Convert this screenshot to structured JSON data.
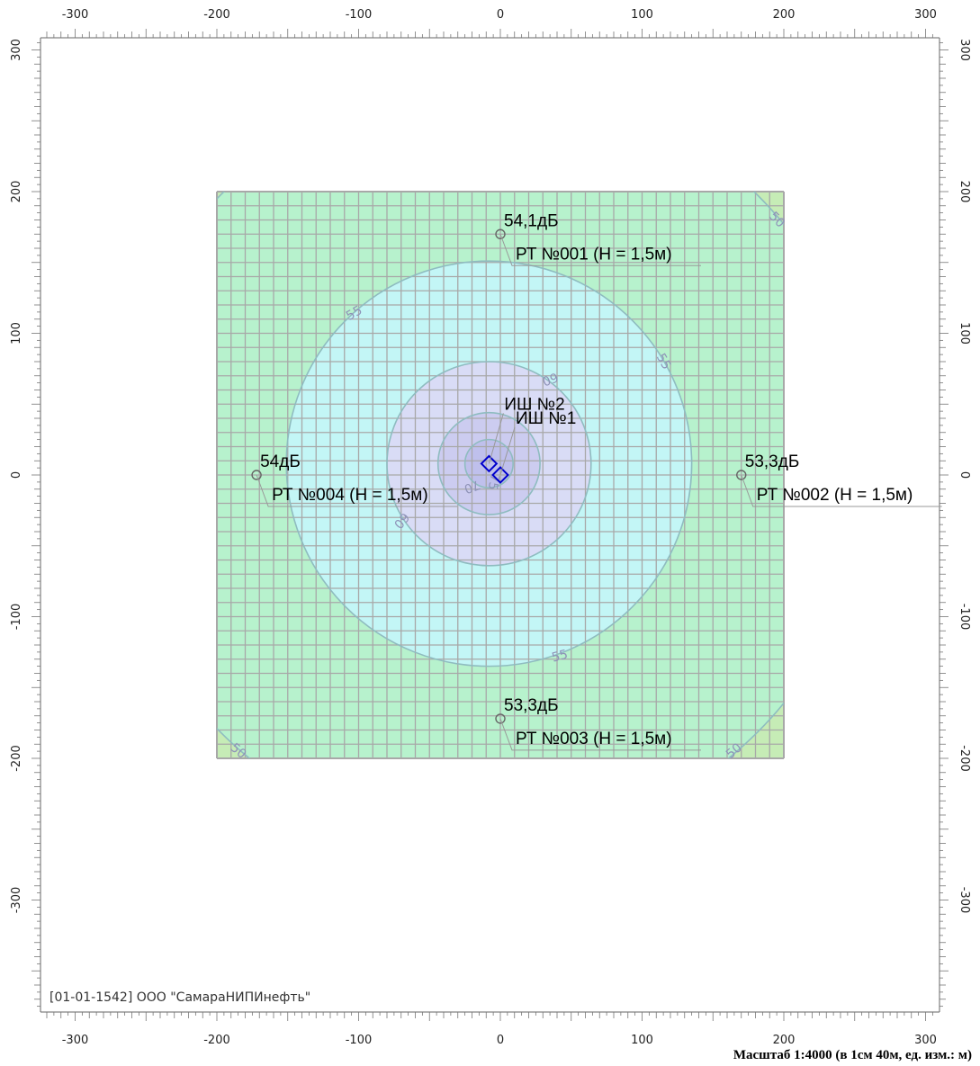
{
  "footer": {
    "company": "[01-01-1542] ООО \"СамараНИПИнефть\"",
    "scale": "Масштаб 1:4000 (в 1см 40м, ед. изм.: м)"
  },
  "axes": {
    "x_ticks": [
      "-300",
      "-200",
      "-100",
      "0",
      "100",
      "200",
      "300"
    ],
    "y_ticks": [
      "300",
      "200",
      "100",
      "0",
      "-100",
      "-200",
      "-300"
    ],
    "x_range": [
      -325,
      310
    ],
    "y_range": [
      -385,
      315
    ],
    "grid_extent": [
      -200,
      200
    ],
    "grid_step": 10
  },
  "colors": {
    "zone_50_55": "#b7f2cd",
    "zone_55_60": "#c3f6f6",
    "zone_60_65": "#d9dcf6",
    "zone_65_70": "#ccccf0",
    "zone_70_plus": "#bfc0ec",
    "grid_line": "#a8a8a8",
    "contour_line": "#8fbcc0",
    "source": "#0000cc"
  },
  "contours": [
    {
      "level": "50",
      "cx": -8,
      "cy": 8,
      "r": 268
    },
    {
      "level": "55",
      "cx": -8,
      "cy": 8,
      "r": 143
    },
    {
      "level": "60",
      "cx": -8,
      "cy": 8,
      "r": 72
    },
    {
      "level": "65",
      "cx": -8,
      "cy": 8,
      "r": 36
    },
    {
      "level": "70",
      "cx": -8,
      "cy": 8,
      "r": 17
    }
  ],
  "contour_labels": [
    {
      "text": "50",
      "x": 195,
      "y": 180,
      "rot": 45
    },
    {
      "text": "55",
      "x": -103,
      "y": 114,
      "rot": -30
    },
    {
      "text": "55",
      "x": 115,
      "y": 80,
      "rot": 60
    },
    {
      "text": "60",
      "x": 35,
      "y": 68,
      "rot": 160
    },
    {
      "text": "60",
      "x": -70,
      "y": -32,
      "rot": 130
    },
    {
      "text": "55",
      "x": 42,
      "y": -128,
      "rot": -15
    },
    {
      "text": "50",
      "x": -185,
      "y": -195,
      "rot": 40
    },
    {
      "text": "50",
      "x": 165,
      "y": -195,
      "rot": -40
    },
    {
      "text": "70",
      "x": -20,
      "y": -8,
      "rot": 160
    },
    {
      "text": "75",
      "x": -5,
      "y": -5,
      "rot": 100
    }
  ],
  "receivers": [
    {
      "id": "РТ №001 (H = 1,5м)",
      "value": "54,1дБ",
      "x": 0,
      "y": 170
    },
    {
      "id": "РТ №002 (H = 1,5м)",
      "value": "53,3дБ",
      "x": 170,
      "y": 0
    },
    {
      "id": "РТ №003 (H = 1,5м)",
      "value": "53,3дБ",
      "x": 0,
      "y": -172
    },
    {
      "id": "РТ №004 (H = 1,5м)",
      "value": "54дБ",
      "x": -172,
      "y": 0
    }
  ],
  "sources": [
    {
      "id": "ИШ №2",
      "x": -8,
      "y": 8
    },
    {
      "id": "ИШ №1",
      "x": 0,
      "y": 0
    }
  ]
}
